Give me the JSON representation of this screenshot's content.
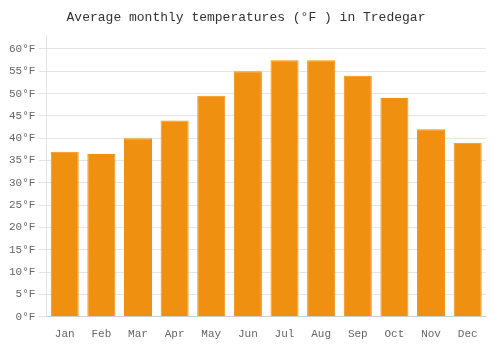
{
  "chart_data": {
    "type": "bar",
    "title": "Average monthly temperatures (°F ) in Tredegar",
    "categories": [
      "Jan",
      "Feb",
      "Mar",
      "Apr",
      "May",
      "Jun",
      "Jul",
      "Aug",
      "Sep",
      "Oct",
      "Nov",
      "Dec"
    ],
    "values": [
      37,
      36.5,
      40,
      44,
      49.5,
      55,
      57.5,
      57.5,
      54,
      49,
      42,
      39
    ],
    "color": "#F09010",
    "ylim": [
      0,
      63
    ],
    "yticks": [
      {
        "value": 0,
        "label": "0°F"
      },
      {
        "value": 5,
        "label": "5°F"
      },
      {
        "value": 10,
        "label": "10°F"
      },
      {
        "value": 15,
        "label": "15°F"
      },
      {
        "value": 20,
        "label": "20°F"
      },
      {
        "value": 25,
        "label": "25°F"
      },
      {
        "value": 30,
        "label": "30°F"
      },
      {
        "value": 35,
        "label": "35°F"
      },
      {
        "value": 40,
        "label": "40°F"
      },
      {
        "value": 45,
        "label": "45°F"
      },
      {
        "value": 50,
        "label": "50°F"
      },
      {
        "value": 55,
        "label": "55°F"
      },
      {
        "value": 60,
        "label": "60°F"
      }
    ],
    "grid": true
  }
}
